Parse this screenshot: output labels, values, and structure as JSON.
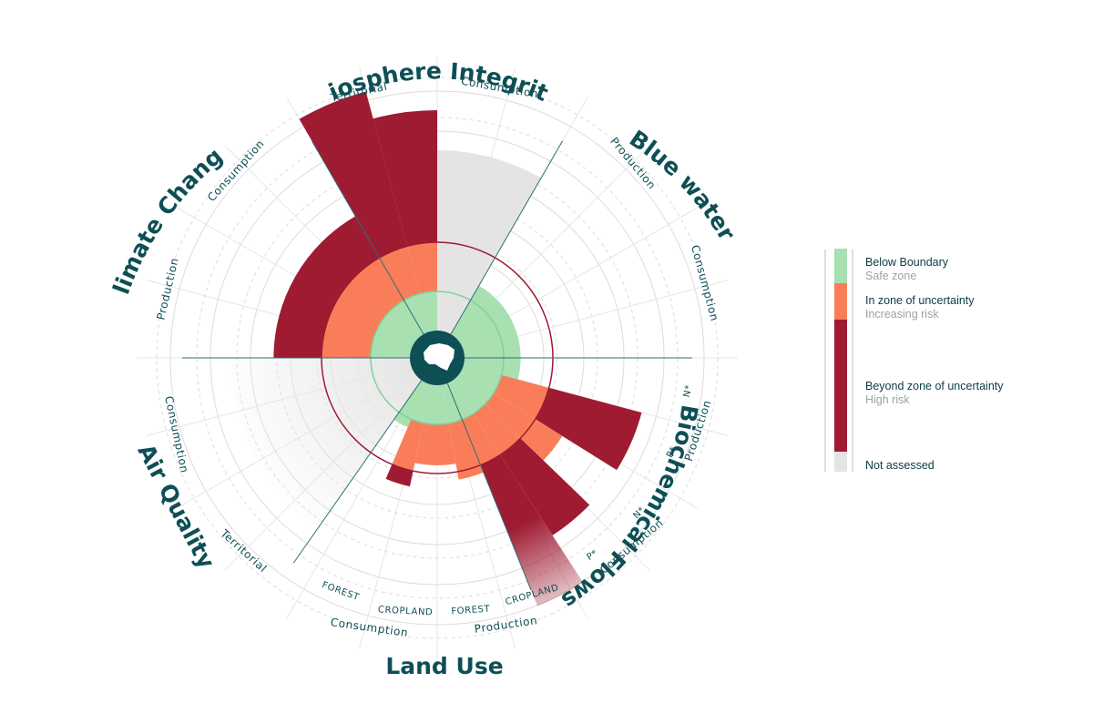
{
  "chart_data": {
    "type": "radial-bar",
    "categories": [
      {
        "name": "Biosphere Integrity",
        "indicators": [
          "Territorial",
          "Consumption"
        ]
      },
      {
        "name": "Blue water",
        "indicators": [
          "Production",
          "Consumption"
        ]
      },
      {
        "name": "Biochemical Flows",
        "indicators": [
          "N*",
          "P*",
          "N*",
          "P*"
        ],
        "groups": [
          "Production",
          "Consumption"
        ]
      },
      {
        "name": "Land Use",
        "indicators": [
          "FOREST",
          "CROPLAND",
          "FOREST",
          "CROPLAND"
        ],
        "groups": [
          "Production",
          "Consumption"
        ]
      },
      {
        "name": "Air Quality",
        "indicators": [
          "Territorial",
          "Consumption"
        ]
      },
      {
        "name": "Climate Change",
        "indicators": [
          "Production",
          "Consumption"
        ]
      }
    ],
    "bars": [
      {
        "category": "Biosphere Integrity",
        "indicator": "Consumption",
        "status": "Not assessed",
        "value": 4.5
      },
      {
        "category": "Blue water",
        "indicator": "Production",
        "status": "Below Boundary",
        "value": 1.4
      },
      {
        "category": "Blue water",
        "indicator": "Consumption",
        "status": "Below Boundary",
        "value": 1.4
      },
      {
        "category": "Biochemical Flows",
        "group": "Production",
        "indicator": "N*",
        "status": "Beyond zone of uncertainty",
        "value": 4.6
      },
      {
        "category": "Biochemical Flows",
        "group": "Production",
        "indicator": "P*",
        "status": "In zone of uncertainty",
        "value": 3.0
      },
      {
        "category": "Biochemical Flows",
        "group": "Consumption",
        "indicator": "N*",
        "status": "Beyond zone of uncertainty",
        "value": 4.6
      },
      {
        "category": "Biochemical Flows",
        "group": "Consumption",
        "indicator": "P*",
        "status": "Beyond zone of uncertainty",
        "value": 6.0
      },
      {
        "category": "Land Use",
        "group": "Production",
        "indicator": "CROPLAND",
        "status": "In zone of uncertainty",
        "value": 2.4
      },
      {
        "category": "Land Use",
        "group": "Production",
        "indicator": "FOREST",
        "status": "In zone of uncertainty",
        "value": 2.0
      },
      {
        "category": "Land Use",
        "group": "Consumption",
        "indicator": "CROPLAND",
        "status": "In zone of uncertainty",
        "value": 2.0
      },
      {
        "category": "Land Use",
        "group": "Consumption",
        "indicator": "FOREST",
        "status": "Beyond zone of uncertainty",
        "value": 2.6
      },
      {
        "category": "Air Quality",
        "indicator": "Territorial",
        "status": "Below Boundary",
        "value": 1.2
      },
      {
        "category": "Air Quality",
        "indicator": "Consumption",
        "status": "Not assessed",
        "value": 4.5
      },
      {
        "category": "Climate Change",
        "indicator": "Production",
        "status": "Beyond zone of uncertainty",
        "value": 3.4
      },
      {
        "category": "Climate Change",
        "indicator": "Consumption",
        "status": "Beyond zone of uncertainty",
        "value": 6.2
      },
      {
        "category": "Biosphere Integrity",
        "indicator": "Territorial",
        "status": "Beyond zone of uncertainty",
        "value": 5.5
      }
    ],
    "legend": [
      {
        "title": "Below Boundary",
        "subtitle": "Safe zone",
        "color": "#a8e0b2"
      },
      {
        "title": "In zone of uncertainty",
        "subtitle": "Increasing risk",
        "color": "#fa7d5a"
      },
      {
        "title": "Beyond zone of uncertainty",
        "subtitle": "High risk",
        "color": "#9e1b32"
      },
      {
        "title": "Not assessed",
        "subtitle": "",
        "color": "#e4e4e4"
      }
    ],
    "legend_position": "right",
    "colors": {
      "safe": "#a8e0b2",
      "uncertain": "#fa7d5a",
      "high": "#9e1b32",
      "na": "#e4e4e4",
      "text": "#0d4f55",
      "center": "#0d4f55"
    }
  }
}
